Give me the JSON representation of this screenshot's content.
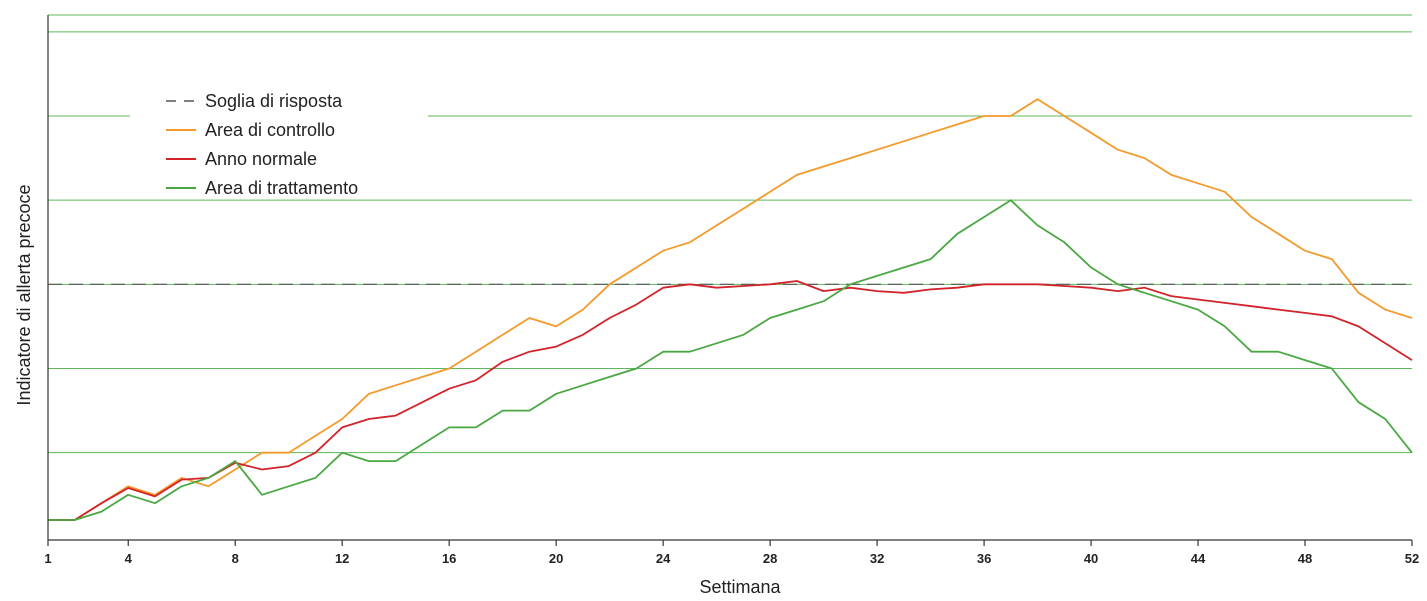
{
  "chart_data": {
    "type": "line",
    "title": "",
    "xlabel": "Settimana",
    "ylabel": "Indicatore di allerta precoce",
    "xlim": [
      1,
      52
    ],
    "ylim": [
      0,
      30
    ],
    "x_ticks": [
      1,
      4,
      8,
      12,
      16,
      20,
      24,
      28,
      32,
      36,
      40,
      44,
      48,
      52
    ],
    "y_gridlines": [
      4,
      9,
      14,
      19,
      24,
      29
    ],
    "threshold": {
      "name": "Soglia di risposta",
      "value": 14,
      "color": "#555555"
    },
    "legend_position": "top-left",
    "series": [
      {
        "name": "Area di controllo",
        "color": "#F39A2B",
        "points": [
          [
            1,
            0
          ],
          [
            2,
            0
          ],
          [
            3,
            1
          ],
          [
            4,
            2
          ],
          [
            5,
            1.5
          ],
          [
            6,
            2.5
          ],
          [
            7,
            2
          ],
          [
            8,
            3
          ],
          [
            9,
            4
          ],
          [
            10,
            4
          ],
          [
            11,
            5
          ],
          [
            12,
            6
          ],
          [
            13,
            7.5
          ],
          [
            14,
            8
          ],
          [
            15,
            8.5
          ],
          [
            16,
            9
          ],
          [
            17,
            10
          ],
          [
            18,
            11
          ],
          [
            19,
            12
          ],
          [
            20,
            11.5
          ],
          [
            21,
            12.5
          ],
          [
            22,
            14
          ],
          [
            23,
            15
          ],
          [
            24,
            16
          ],
          [
            25,
            16.5
          ],
          [
            26,
            17.5
          ],
          [
            27,
            18.5
          ],
          [
            28,
            19.5
          ],
          [
            29,
            20.5
          ],
          [
            30,
            21
          ],
          [
            31,
            21.5
          ],
          [
            32,
            22
          ],
          [
            33,
            22.5
          ],
          [
            34,
            23
          ],
          [
            35,
            23.5
          ],
          [
            36,
            24
          ],
          [
            37,
            24
          ],
          [
            38,
            25
          ],
          [
            39,
            24
          ],
          [
            40,
            23
          ],
          [
            41,
            22
          ],
          [
            42,
            21.5
          ],
          [
            43,
            20.5
          ],
          [
            44,
            20
          ],
          [
            45,
            19.5
          ],
          [
            46,
            18
          ],
          [
            47,
            17
          ],
          [
            48,
            16
          ],
          [
            49,
            15.5
          ],
          [
            50,
            13.5
          ],
          [
            51,
            12.5
          ],
          [
            52,
            12
          ]
        ]
      },
      {
        "name": "Anno normale",
        "color": "#D2232A",
        "points": [
          [
            1,
            0
          ],
          [
            2,
            0
          ],
          [
            3,
            1
          ],
          [
            4,
            1.9
          ],
          [
            5,
            1.4
          ],
          [
            6,
            2.4
          ],
          [
            7,
            2.5
          ],
          [
            8,
            3.4
          ],
          [
            9,
            3
          ],
          [
            10,
            3.2
          ],
          [
            11,
            4
          ],
          [
            12,
            5.5
          ],
          [
            13,
            6
          ],
          [
            14,
            6.2
          ],
          [
            15,
            7
          ],
          [
            16,
            7.8
          ],
          [
            17,
            8.3
          ],
          [
            18,
            9.4
          ],
          [
            19,
            10
          ],
          [
            20,
            10.3
          ],
          [
            21,
            11
          ],
          [
            22,
            12
          ],
          [
            23,
            12.8
          ],
          [
            24,
            13.8
          ],
          [
            25,
            14
          ],
          [
            26,
            13.8
          ],
          [
            27,
            13.9
          ],
          [
            28,
            14
          ],
          [
            29,
            14.2
          ],
          [
            30,
            13.6
          ],
          [
            31,
            13.8
          ],
          [
            32,
            13.6
          ],
          [
            33,
            13.5
          ],
          [
            34,
            13.7
          ],
          [
            35,
            13.8
          ],
          [
            36,
            14
          ],
          [
            37,
            14
          ],
          [
            38,
            14
          ],
          [
            39,
            13.9
          ],
          [
            40,
            13.8
          ],
          [
            41,
            13.6
          ],
          [
            42,
            13.8
          ],
          [
            43,
            13.3
          ],
          [
            44,
            13.1
          ],
          [
            45,
            12.9
          ],
          [
            46,
            12.7
          ],
          [
            47,
            12.5
          ],
          [
            48,
            12.3
          ],
          [
            49,
            12.1
          ],
          [
            50,
            11.5
          ],
          [
            51,
            10.5
          ],
          [
            52,
            9.5
          ]
        ]
      },
      {
        "name": "Area di trattamento",
        "color": "#4AA843",
        "points": [
          [
            1,
            0
          ],
          [
            2,
            0
          ],
          [
            3,
            0.5
          ],
          [
            4,
            1.5
          ],
          [
            5,
            1
          ],
          [
            6,
            2
          ],
          [
            7,
            2.5
          ],
          [
            8,
            3.5
          ],
          [
            9,
            1.5
          ],
          [
            10,
            2
          ],
          [
            11,
            2.5
          ],
          [
            12,
            4
          ],
          [
            13,
            3.5
          ],
          [
            14,
            3.5
          ],
          [
            15,
            4.5
          ],
          [
            16,
            5.5
          ],
          [
            17,
            5.5
          ],
          [
            18,
            6.5
          ],
          [
            19,
            6.5
          ],
          [
            20,
            7.5
          ],
          [
            21,
            8
          ],
          [
            22,
            8.5
          ],
          [
            23,
            9
          ],
          [
            24,
            10
          ],
          [
            25,
            10
          ],
          [
            26,
            10.5
          ],
          [
            27,
            11
          ],
          [
            28,
            12
          ],
          [
            29,
            12.5
          ],
          [
            30,
            13
          ],
          [
            31,
            14
          ],
          [
            32,
            14.5
          ],
          [
            33,
            15
          ],
          [
            34,
            15.5
          ],
          [
            35,
            17
          ],
          [
            36,
            18
          ],
          [
            37,
            19
          ],
          [
            38,
            17.5
          ],
          [
            39,
            16.5
          ],
          [
            40,
            15
          ],
          [
            41,
            14
          ],
          [
            42,
            13.5
          ],
          [
            43,
            13
          ],
          [
            44,
            12.5
          ],
          [
            45,
            11.5
          ],
          [
            46,
            10
          ],
          [
            47,
            10
          ],
          [
            48,
            9.5
          ],
          [
            49,
            9
          ],
          [
            50,
            7
          ],
          [
            51,
            6
          ],
          [
            52,
            4
          ]
        ]
      }
    ]
  },
  "colors": {
    "gridline": "#5DB85A",
    "axis": "#333333",
    "background": "#FFFFFF"
  }
}
